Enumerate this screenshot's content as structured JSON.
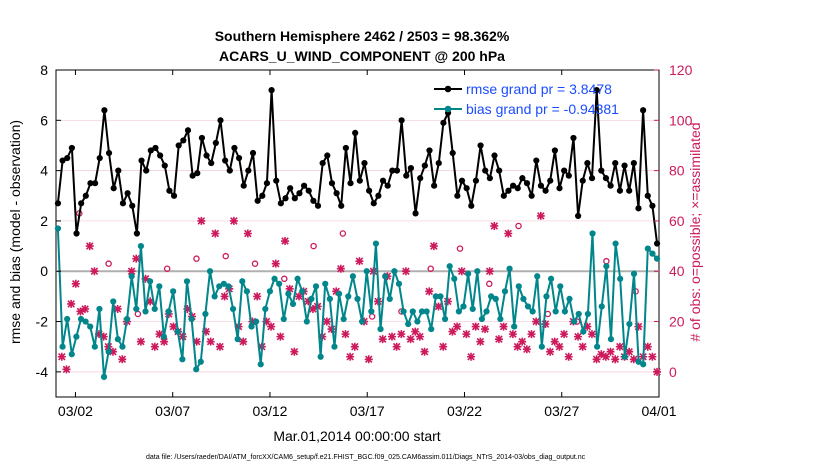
{
  "chart_data": {
    "type": "line",
    "title_line1": "Southern Hemisphere 2462 / 2503 = 98.362%",
    "title_line2": "ACARS_U_WIND_COMPONENT @ 200 hPa",
    "xlabel": "Mar.01,2014 00:00:00 start",
    "ylabel_left": "rmse and bias (model - observation)",
    "ylabel_right": "# of obs: o=possible; ×=assimilated",
    "footer": "data file: /Users/raeder/DAI/ATM_forcXX/CAM6_setup/f.e21.FHIST_BGC.f09_025.CAM6assim.011/Diags_NTrS_2014-03/obs_diag_output.nc",
    "x_range_days": [
      0,
      31
    ],
    "ylim_left": [
      -5,
      8
    ],
    "ylim_right": [
      -10,
      120
    ],
    "xtick_days": [
      1,
      6,
      11,
      16,
      21,
      26,
      31
    ],
    "xtick_labels": [
      "03/02",
      "03/07",
      "03/12",
      "03/17",
      "03/22",
      "03/27",
      "04/01"
    ],
    "ytick_left": [
      "-4",
      "-2",
      "0",
      "2",
      "4",
      "6",
      "8"
    ],
    "ytick_left_values": [
      -4,
      -2,
      0,
      2,
      4,
      6,
      8
    ],
    "ytick_right": [
      "0",
      "20",
      "40",
      "60",
      "80",
      "100",
      "120"
    ],
    "ytick_right_values": [
      0,
      20,
      40,
      60,
      80,
      100,
      120
    ],
    "colors": {
      "rmse": "#000000",
      "bias": "#00868b",
      "obs": "#cc1a5c",
      "zero_line": "#b0b0b0",
      "right_axis": "#cc1a5c"
    },
    "series": [
      {
        "name": "rmse grand pr = 3.8478",
        "axis": "left",
        "values": [
          2.7,
          4.4,
          4.5,
          4.9,
          1.5,
          2.7,
          3.0,
          3.5,
          3.5,
          4.5,
          6.4,
          4.7,
          3.3,
          4.0,
          2.7,
          3.1,
          2.6,
          1.5,
          4.4,
          4.0,
          4.8,
          4.9,
          4.6,
          4.2,
          3.2,
          3.0,
          5.0,
          5.2,
          5.6,
          3.8,
          3.9,
          5.3,
          4.6,
          4.3,
          5.1,
          6.0,
          4.4,
          4.0,
          4.9,
          4.5,
          3.4,
          4.0,
          4.7,
          2.8,
          3.0,
          3.5,
          7.2,
          3.6,
          2.7,
          2.9,
          3.3,
          2.9,
          3.1,
          3.4,
          3.2,
          2.8,
          2.6,
          4.3,
          4.6,
          3.5,
          3.1,
          2.6,
          4.9,
          3.5,
          5.5,
          3.6,
          4.3,
          3.2,
          2.7,
          3.0,
          3.6,
          3.4,
          4.0,
          4.0,
          6.0,
          3.8,
          4.1,
          2.3,
          3.7,
          4.2,
          4.8,
          3.4,
          4.3,
          5.9,
          6.3,
          4.7,
          3.0,
          3.6,
          3.3,
          2.6,
          3.6,
          5.0,
          4.0,
          3.7,
          4.6,
          4.0,
          3.0,
          3.2,
          3.4,
          3.3,
          3.7,
          3.5,
          3.0,
          4.4,
          3.4,
          3.2,
          3.6,
          4.8,
          3.3,
          4.0,
          3.8,
          5.3,
          2.2,
          3.6,
          4.3,
          3.7,
          7.2,
          4.0,
          3.7,
          3.4,
          4.3,
          3.2,
          4.2,
          3.2,
          4.3,
          2.5,
          6.4,
          3.0,
          2.6,
          1.1
        ],
        "legend_position": "top-right"
      },
      {
        "name": "bias grand pr = -0.94381",
        "axis": "left",
        "values": [
          1.7,
          -3.0,
          -1.9,
          -3.3,
          -2.6,
          -1.9,
          -2.0,
          -2.2,
          -3.0,
          -1.5,
          -4.2,
          -3.2,
          -1.2,
          -2.7,
          -3.0,
          -1.9,
          -0.2,
          -1.5,
          1.0,
          -1.6,
          -0.4,
          -1.5,
          -0.6,
          -2.6,
          -1.6,
          -0.8,
          -2.4,
          -3.5,
          -0.4,
          -1.9,
          -3.9,
          -3.6,
          -1.7,
          0.0,
          -1.0,
          -0.6,
          -0.5,
          -0.6,
          -1.5,
          -2.7,
          -0.4,
          -0.8,
          -2.2,
          -2.0,
          -3.7,
          -1.5,
          -0.8,
          -0.3,
          -0.5,
          -1.9,
          -0.9,
          -1.3,
          -0.3,
          -0.8,
          -2.0,
          -1.1,
          -0.6,
          -3.4,
          -0.5,
          -1.1,
          -3.0,
          -0.9,
          -1.9,
          -1.0,
          -0.2,
          -1.1,
          -2.0,
          0.0,
          -1.6,
          1.1,
          -2.3,
          -0.2,
          -1.1,
          0.0,
          -0.5,
          -1.6,
          -2.1,
          -1.6,
          -2.0,
          -1.6,
          -1.6,
          -2.3,
          -1.0,
          -1.0,
          -1.9,
          0.2,
          -0.3,
          -1.6,
          -1.4,
          -0.1,
          -1.5,
          0.0,
          -1.9,
          -1.6,
          -1.0,
          -1.1,
          -1.9,
          -0.8,
          0.1,
          -2.2,
          -0.6,
          -1.1,
          -1.4,
          -1.6,
          -0.2,
          -3.0,
          -1.0,
          -0.3,
          -1.6,
          -0.6,
          -1.6,
          -1.1,
          -2.0,
          -1.7,
          -2.4,
          -1.7,
          1.5,
          -3.0,
          -1.4,
          0.2,
          -2.7,
          1.1,
          -0.3,
          -3.4,
          -2.1,
          -0.1,
          -3.6,
          -3.7,
          0.9,
          0.7,
          0.5
        ],
        "legend_position": "top-right"
      },
      {
        "name": "# assimilated",
        "axis": "right",
        "values": [
          6,
          1,
          27,
          35,
          24,
          25,
          50,
          40,
          15,
          14,
          10,
          8,
          25,
          5,
          20,
          40,
          45,
          12,
          37,
          28,
          10,
          15,
          12,
          23,
          18,
          16,
          14,
          25,
          22,
          12,
          60,
          16,
          12,
          55,
          10,
          30,
          33,
          60,
          18,
          12,
          55,
          20,
          30,
          10,
          20,
          18,
          43,
          14,
          52,
          33,
          8,
          30,
          32,
          28,
          25,
          26,
          14,
          20,
          17,
          32,
          41,
          15,
          6,
          10,
          44,
          20,
          5,
          40,
          28,
          13,
          38,
          14,
          10,
          15,
          40,
          13,
          16,
          14,
          8,
          32,
          50,
          26,
          10,
          28,
          16,
          18,
          40,
          15,
          6,
          18,
          12,
          17,
          40,
          58,
          13,
          18,
          55,
          15,
          10,
          12,
          9,
          15,
          20,
          62,
          19,
          8,
          12,
          10,
          15,
          6,
          20,
          14,
          10,
          18,
          15,
          5,
          7,
          6,
          8,
          5,
          10,
          6,
          8,
          5,
          18,
          6,
          10,
          6,
          0
        ]
      },
      {
        "name": "# possible",
        "axis": "right",
        "values": [
          63,
          43,
          23,
          41,
          45,
          46,
          43,
          37,
          50,
          55,
          22,
          24,
          41,
          49,
          35,
          58,
          23,
          20,
          44,
          32
        ]
      }
    ]
  }
}
